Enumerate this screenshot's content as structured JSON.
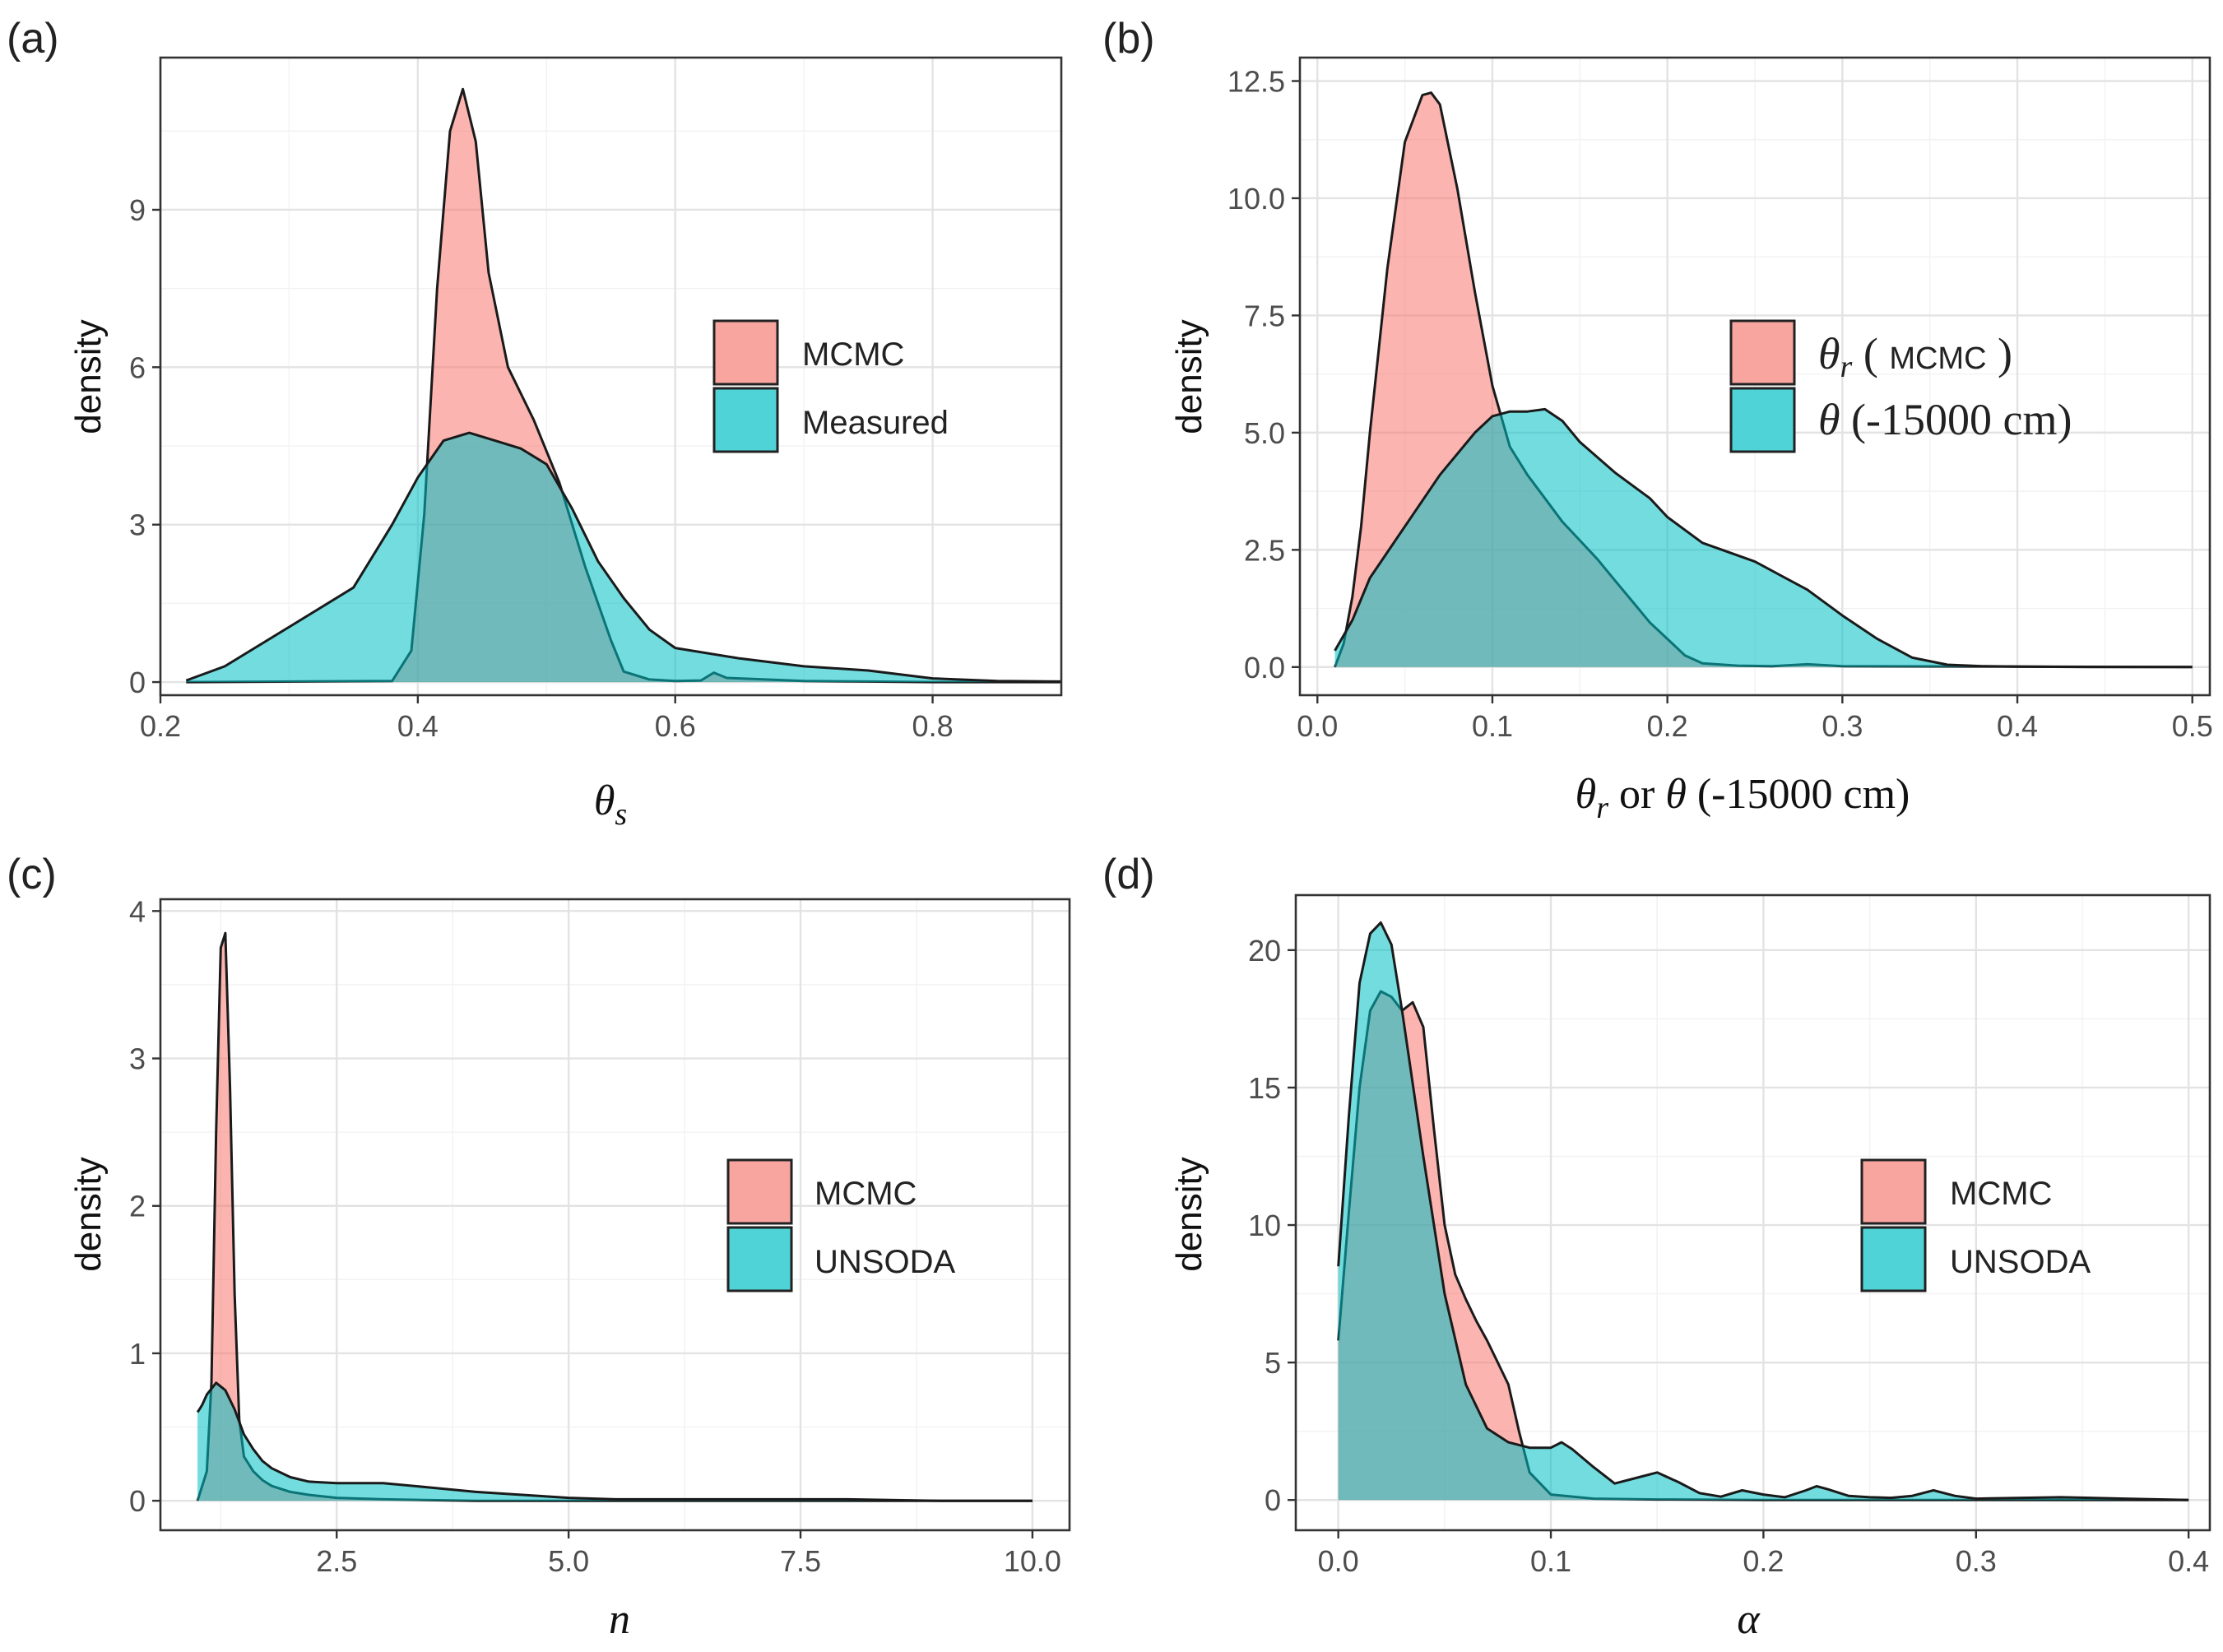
{
  "colors": {
    "red": "#f8766d",
    "teal": "#00bfc4",
    "redFill": "#f8a5a0",
    "tealFill": "#4fd3d6",
    "overlap": "#3e9a93"
  },
  "chart_data": [
    {
      "type": "area",
      "panel": "(a)",
      "xlabel": "θ",
      "xlabel_sub": "s",
      "ylabel": "density",
      "xlim": [
        0.2,
        0.9
      ],
      "ylim": [
        -0.25,
        11.9
      ],
      "xticks": [
        0.2,
        0.4,
        0.6,
        0.8
      ],
      "yticks": [
        0,
        3,
        6,
        9
      ],
      "xtick_labels": [
        "0.2",
        "0.4",
        "0.6",
        "0.8"
      ],
      "ytick_labels": [
        "0",
        "3",
        "6",
        "9"
      ],
      "legend": [
        "MCMC",
        "Measured"
      ],
      "series": [
        {
          "name": "MCMC",
          "x": [
            0.22,
            0.38,
            0.395,
            0.405,
            0.415,
            0.425,
            0.435,
            0.445,
            0.455,
            0.47,
            0.49,
            0.51,
            0.53,
            0.55,
            0.56,
            0.58,
            0.6,
            0.62,
            0.63,
            0.64,
            0.66,
            0.68,
            0.7,
            0.75,
            0.8,
            0.9
          ],
          "y": [
            0,
            0.02,
            0.6,
            3.2,
            7.5,
            10.5,
            11.3,
            10.3,
            7.8,
            6.0,
            5.0,
            3.8,
            2.2,
            0.8,
            0.2,
            0.05,
            0.02,
            0.03,
            0.18,
            0.08,
            0.06,
            0.04,
            0.02,
            0.01,
            0,
            0
          ]
        },
        {
          "name": "Measured",
          "x": [
            0.22,
            0.25,
            0.3,
            0.35,
            0.38,
            0.4,
            0.42,
            0.44,
            0.46,
            0.48,
            0.5,
            0.52,
            0.54,
            0.56,
            0.58,
            0.6,
            0.65,
            0.7,
            0.75,
            0.8,
            0.85,
            0.9
          ],
          "y": [
            0.03,
            0.3,
            1.05,
            1.8,
            3.0,
            3.9,
            4.6,
            4.75,
            4.6,
            4.45,
            4.15,
            3.3,
            2.3,
            1.6,
            1.0,
            0.65,
            0.45,
            0.3,
            0.22,
            0.07,
            0.02,
            0.01
          ]
        }
      ]
    },
    {
      "type": "area",
      "panel": "(b)",
      "xlabel": "θr or θ (-15000 cm)",
      "ylabel": "density",
      "xlim": [
        -0.01,
        0.51
      ],
      "ylim": [
        -0.6,
        13.0
      ],
      "xticks": [
        0.0,
        0.1,
        0.2,
        0.3,
        0.4,
        0.5
      ],
      "yticks": [
        0.0,
        2.5,
        5.0,
        7.5,
        10.0,
        12.5
      ],
      "xtick_labels": [
        "0.0",
        "0.1",
        "0.2",
        "0.3",
        "0.4",
        "0.5"
      ],
      "ytick_labels": [
        "0.0",
        "2.5",
        "5.0",
        "7.5",
        "10.0",
        "12.5"
      ],
      "legend": [
        "θr ( MCMC )",
        "θ (-15000 cm)"
      ],
      "series": [
        {
          "name": "θr ( MCMC )",
          "x": [
            0.01,
            0.015,
            0.02,
            0.025,
            0.03,
            0.04,
            0.05,
            0.06,
            0.065,
            0.07,
            0.08,
            0.09,
            0.1,
            0.11,
            0.12,
            0.13,
            0.14,
            0.15,
            0.16,
            0.17,
            0.18,
            0.19,
            0.2,
            0.21,
            0.22,
            0.24,
            0.26,
            0.28,
            0.3,
            0.5
          ],
          "y": [
            0,
            0.5,
            1.5,
            3.0,
            5.0,
            8.5,
            11.2,
            12.2,
            12.25,
            12.0,
            10.2,
            8.0,
            6.0,
            4.7,
            4.1,
            3.6,
            3.1,
            2.7,
            2.3,
            1.85,
            1.4,
            0.95,
            0.6,
            0.25,
            0.08,
            0.03,
            0.02,
            0.06,
            0.02,
            0
          ]
        },
        {
          "name": "θ (-15000 cm)",
          "x": [
            0.01,
            0.02,
            0.03,
            0.05,
            0.07,
            0.09,
            0.1,
            0.11,
            0.12,
            0.13,
            0.14,
            0.15,
            0.17,
            0.19,
            0.2,
            0.22,
            0.25,
            0.28,
            0.3,
            0.32,
            0.34,
            0.36,
            0.38,
            0.4,
            0.45,
            0.5
          ],
          "y": [
            0.35,
            1.0,
            1.9,
            3.0,
            4.1,
            5.0,
            5.35,
            5.45,
            5.45,
            5.5,
            5.25,
            4.8,
            4.15,
            3.6,
            3.2,
            2.65,
            2.25,
            1.65,
            1.1,
            0.6,
            0.2,
            0.05,
            0.02,
            0.01,
            0,
            0
          ]
        }
      ]
    },
    {
      "type": "area",
      "panel": "(c)",
      "xlabel": "n",
      "ylabel": "density",
      "xlim": [
        0.6,
        10.4
      ],
      "ylim": [
        -0.2,
        4.08
      ],
      "xticks": [
        2.5,
        5.0,
        7.5,
        10.0
      ],
      "yticks": [
        0,
        1,
        2,
        3,
        4
      ],
      "xtick_labels": [
        "2.5",
        "5.0",
        "7.5",
        "10.0"
      ],
      "ytick_labels": [
        "0",
        "1",
        "2",
        "3",
        "4"
      ],
      "legend": [
        "MCMC",
        "UNSODA"
      ],
      "series": [
        {
          "name": "MCMC",
          "x": [
            1.0,
            1.1,
            1.15,
            1.2,
            1.25,
            1.3,
            1.35,
            1.4,
            1.45,
            1.5,
            1.6,
            1.7,
            1.8,
            1.9,
            2.0,
            2.2,
            2.5,
            3.0,
            4.0,
            10.0
          ],
          "y": [
            0,
            0.2,
            0.8,
            2.5,
            3.75,
            3.85,
            2.8,
            1.4,
            0.55,
            0.3,
            0.2,
            0.14,
            0.1,
            0.08,
            0.06,
            0.04,
            0.02,
            0.01,
            0,
            0
          ]
        },
        {
          "name": "UNSODA",
          "x": [
            1.0,
            1.02,
            1.05,
            1.1,
            1.2,
            1.3,
            1.4,
            1.5,
            1.6,
            1.7,
            1.8,
            2.0,
            2.2,
            2.5,
            3.0,
            3.5,
            4.0,
            4.5,
            5.0,
            5.5,
            6.0,
            7.0,
            8.0,
            9.0,
            10.0
          ],
          "y": [
            0.6,
            0.62,
            0.65,
            0.72,
            0.8,
            0.75,
            0.62,
            0.45,
            0.35,
            0.27,
            0.22,
            0.16,
            0.13,
            0.12,
            0.12,
            0.09,
            0.06,
            0.04,
            0.02,
            0.01,
            0.01,
            0.01,
            0.01,
            0,
            0
          ]
        }
      ]
    },
    {
      "type": "area",
      "panel": "(d)",
      "xlabel": "α",
      "ylabel": "density",
      "xlim": [
        -0.02,
        0.41
      ],
      "ylim": [
        -1.1,
        22.0
      ],
      "xticks": [
        0.0,
        0.1,
        0.2,
        0.3,
        0.4
      ],
      "yticks": [
        0,
        5,
        10,
        15,
        20
      ],
      "xtick_labels": [
        "0.0",
        "0.1",
        "0.2",
        "0.3",
        "0.4"
      ],
      "ytick_labels": [
        "0",
        "5",
        "10",
        "15",
        "20"
      ],
      "legend": [
        "MCMC",
        "UNSODA"
      ],
      "series": [
        {
          "name": "MCMC",
          "x": [
            0.0,
            0.005,
            0.01,
            0.015,
            0.02,
            0.025,
            0.03,
            0.035,
            0.04,
            0.045,
            0.05,
            0.055,
            0.06,
            0.065,
            0.07,
            0.075,
            0.08,
            0.085,
            0.09,
            0.1,
            0.12,
            0.15,
            0.2,
            0.4
          ],
          "y": [
            5.8,
            10.5,
            15.0,
            17.8,
            18.5,
            18.3,
            17.8,
            18.1,
            17.2,
            13.5,
            10.0,
            8.2,
            7.3,
            6.5,
            5.8,
            5.0,
            4.2,
            2.5,
            1.0,
            0.2,
            0.05,
            0.02,
            0,
            0
          ]
        },
        {
          "name": "UNSODA",
          "x": [
            0.0,
            0.005,
            0.01,
            0.015,
            0.02,
            0.025,
            0.03,
            0.04,
            0.05,
            0.06,
            0.07,
            0.08,
            0.09,
            0.1,
            0.105,
            0.11,
            0.12,
            0.13,
            0.14,
            0.15,
            0.16,
            0.17,
            0.18,
            0.19,
            0.2,
            0.21,
            0.22,
            0.225,
            0.23,
            0.24,
            0.25,
            0.26,
            0.27,
            0.28,
            0.29,
            0.3,
            0.34,
            0.37,
            0.4
          ],
          "y": [
            8.5,
            14.0,
            18.8,
            20.6,
            21.0,
            20.2,
            17.8,
            12.5,
            7.5,
            4.2,
            2.6,
            2.1,
            1.9,
            1.9,
            2.1,
            1.85,
            1.2,
            0.6,
            0.8,
            1.0,
            0.65,
            0.25,
            0.12,
            0.35,
            0.2,
            0.1,
            0.35,
            0.5,
            0.4,
            0.15,
            0.1,
            0.08,
            0.15,
            0.35,
            0.15,
            0.05,
            0.1,
            0.05,
            0
          ]
        }
      ]
    }
  ]
}
